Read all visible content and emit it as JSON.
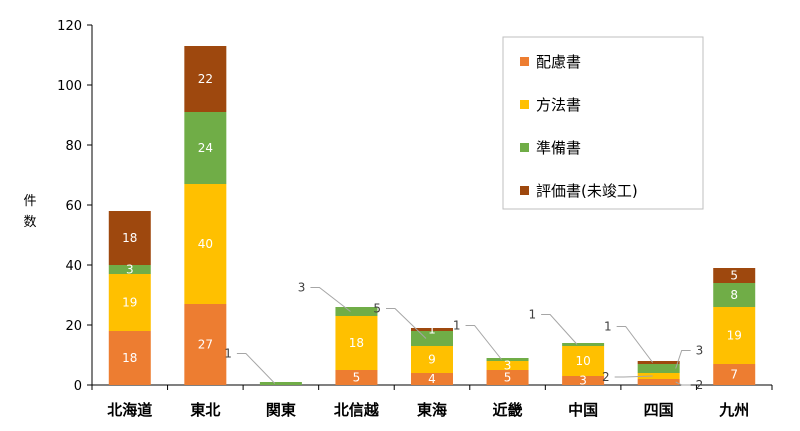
{
  "chart_data": {
    "type": "bar",
    "stacked": true,
    "ylabel": "件数",
    "ylim": [
      0,
      120
    ],
    "yticks": [
      0,
      20,
      40,
      60,
      80,
      100,
      120
    ],
    "grid": false,
    "legend_position": "top-right",
    "categories": [
      "北海道",
      "東北",
      "関東",
      "北信越",
      "東海",
      "近畿",
      "中国",
      "四国",
      "九州"
    ],
    "series": [
      {
        "name": "配慮書",
        "color": "#ED7D31",
        "values": [
          18,
          27,
          0,
          5,
          4,
          5,
          3,
          2,
          7
        ]
      },
      {
        "name": "方法書",
        "color": "#FFC000",
        "values": [
          19,
          40,
          0,
          18,
          9,
          3,
          10,
          2,
          19
        ]
      },
      {
        "name": "準備書",
        "color": "#70AD47",
        "values": [
          3,
          24,
          1,
          3,
          5,
          1,
          1,
          3,
          8
        ]
      },
      {
        "name": "評価書(未竣工)",
        "color": "#9E480E",
        "values": [
          18,
          22,
          0,
          0,
          1,
          0,
          0,
          1,
          5
        ]
      }
    ],
    "data_labels": [
      [
        "18",
        "27",
        "",
        "5",
        "4",
        "5",
        "3",
        "2",
        "7"
      ],
      [
        "19",
        "40",
        "",
        "18",
        "9",
        "3",
        "10",
        "2",
        "19"
      ],
      [
        "3",
        "24",
        "1",
        "3",
        "5",
        "1",
        "1",
        "3",
        "8"
      ],
      [
        "18",
        "22",
        "",
        "",
        "1",
        "",
        "",
        "1",
        "5"
      ]
    ]
  }
}
